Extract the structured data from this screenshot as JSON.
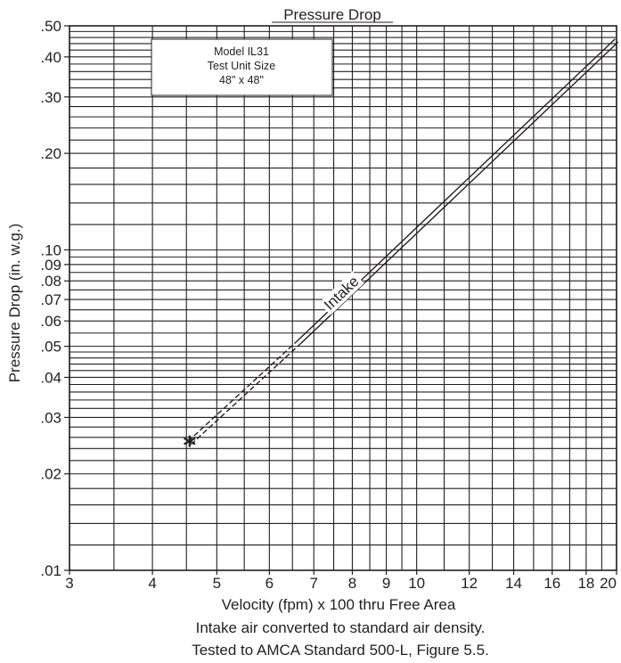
{
  "chart_data": {
    "type": "line",
    "title": "Pressure Drop",
    "xlabel": "Velocity (fpm) x 100 thru Free Area",
    "ylabel": "Pressure Drop (in. w.g.)",
    "x_scale": "log",
    "y_scale": "log",
    "xlim": [
      3,
      20
    ],
    "ylim": [
      0.01,
      0.5
    ],
    "x_ticks": [
      {
        "value": 3,
        "label": "3"
      },
      {
        "value": 4,
        "label": "4"
      },
      {
        "value": 5,
        "label": "5"
      },
      {
        "value": 6,
        "label": "6"
      },
      {
        "value": 7,
        "label": "7"
      },
      {
        "value": 8,
        "label": "8"
      },
      {
        "value": 9,
        "label": "9"
      },
      {
        "value": 10,
        "label": "10"
      },
      {
        "value": 12,
        "label": "12"
      },
      {
        "value": 14,
        "label": "14"
      },
      {
        "value": 16,
        "label": "16"
      },
      {
        "value": 18,
        "label": "18"
      },
      {
        "value": 20,
        "label": "20"
      }
    ],
    "y_ticks": [
      {
        "value": 0.5,
        "label": ".50"
      },
      {
        "value": 0.4,
        "label": ".40"
      },
      {
        "value": 0.3,
        "label": ".30"
      },
      {
        "value": 0.2,
        "label": ".20"
      },
      {
        "value": 0.1,
        "label": ".10"
      },
      {
        "value": 0.09,
        "label": ".09"
      },
      {
        "value": 0.08,
        "label": ".08"
      },
      {
        "value": 0.07,
        "label": ".07"
      },
      {
        "value": 0.06,
        "label": ".06"
      },
      {
        "value": 0.05,
        "label": ".05"
      },
      {
        "value": 0.04,
        "label": ".04"
      },
      {
        "value": 0.03,
        "label": ".03"
      },
      {
        "value": 0.02,
        "label": ".02"
      },
      {
        "value": 0.01,
        "label": ".01"
      }
    ],
    "x_grid": [
      3,
      3.5,
      4,
      4.5,
      5,
      5.5,
      6,
      6.5,
      7,
      7.5,
      8,
      8.5,
      9,
      9.5,
      10,
      11,
      12,
      13,
      14,
      15,
      16,
      17,
      18,
      19,
      20
    ],
    "y_grid": [
      0.01,
      0.012,
      0.014,
      0.016,
      0.018,
      0.02,
      0.022,
      0.024,
      0.026,
      0.028,
      0.03,
      0.032,
      0.034,
      0.036,
      0.038,
      0.04,
      0.042,
      0.044,
      0.046,
      0.048,
      0.05,
      0.055,
      0.06,
      0.065,
      0.07,
      0.075,
      0.08,
      0.085,
      0.09,
      0.095,
      0.1,
      0.12,
      0.14,
      0.16,
      0.18,
      0.2,
      0.22,
      0.24,
      0.26,
      0.28,
      0.3,
      0.32,
      0.34,
      0.36,
      0.38,
      0.4,
      0.42,
      0.44,
      0.46,
      0.48,
      0.5
    ],
    "grid": true,
    "series": [
      {
        "name": "Intake",
        "color": "#231f20",
        "segments": [
          {
            "style": "dashed",
            "points": [
              [
                4.55,
                0.025
              ],
              [
                6.65,
                0.0515
              ]
            ]
          },
          {
            "style": "solid",
            "points": [
              [
                6.65,
                0.0515
              ],
              [
                20,
                0.45
              ]
            ]
          }
        ],
        "start_marker": {
          "symbol": "*",
          "x": 4.55,
          "y": 0.025
        }
      }
    ],
    "annotations": [
      {
        "lines": [
          "Model IL31",
          "Test Unit Size",
          "48\" x 48\""
        ],
        "location": "top-left"
      }
    ],
    "notes": [
      "Intake air converted to standard air density.",
      "Tested to AMCA Standard 500-L, Figure 5.5."
    ]
  }
}
